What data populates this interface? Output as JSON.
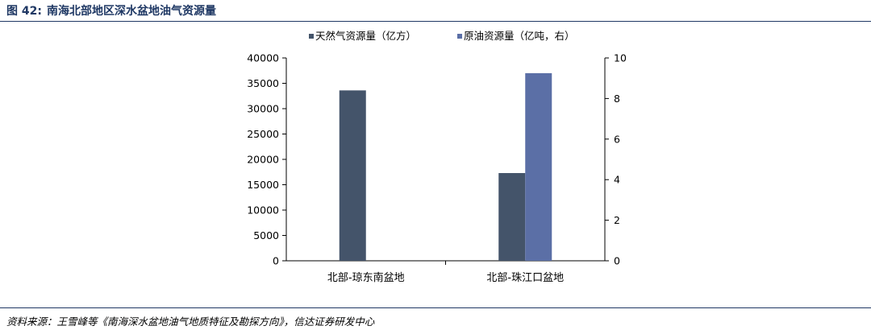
{
  "figure": {
    "number_label": "图 42:",
    "title": "南海北部地区深水盆地油气资源量"
  },
  "source": "资料来源：王雪峰等《南海深水盆地油气地质特征及勘探方向》，信达证券研发中心",
  "chart_data": {
    "type": "bar",
    "categories": [
      "北部-琼东南盆地",
      "北部-珠江口盆地"
    ],
    "series": [
      {
        "name": "天然气资源量（亿方）",
        "axis": "left",
        "values": [
          33600,
          17300
        ],
        "color": "#44546a"
      },
      {
        "name": "原油资源量（亿吨，右）",
        "axis": "right",
        "values": [
          0,
          9.25
        ],
        "color": "#5b6fa6"
      }
    ],
    "y_left": {
      "min": 0,
      "max": 40000,
      "ticks": [
        "0",
        "5000",
        "10000",
        "15000",
        "20000",
        "25000",
        "30000",
        "35000",
        "40000"
      ]
    },
    "y_right": {
      "min": 0,
      "max": 10,
      "ticks": [
        "0",
        "2",
        "4",
        "6",
        "8",
        "10"
      ]
    },
    "legend_position": "top",
    "grid": false
  }
}
